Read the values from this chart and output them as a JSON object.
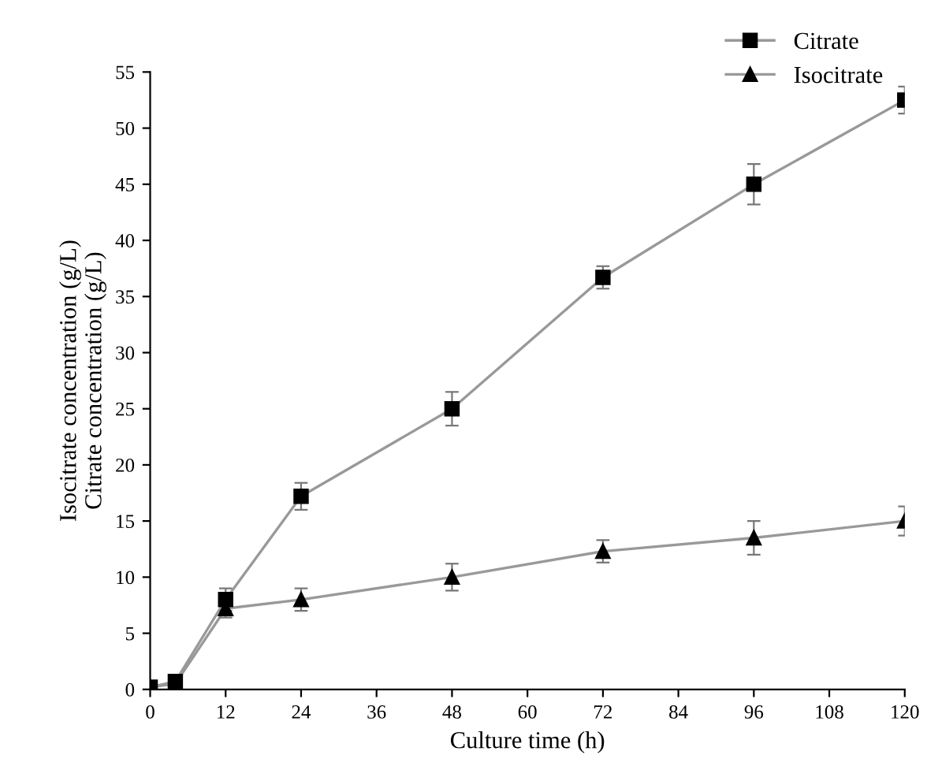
{
  "chart_data": {
    "type": "line",
    "xlabel": "Culture time (h)",
    "ylabel": "Isocitrate concentration (g/L)\nCitrate concentration (g/L)",
    "x": [
      0,
      4,
      12,
      24,
      48,
      72,
      96,
      120
    ],
    "series": [
      {
        "name": "Citrate",
        "color": "#000000",
        "marker": "square",
        "values": [
          0.2,
          0.7,
          8.0,
          17.2,
          25.0,
          36.7,
          45.0,
          52.5
        ],
        "errors": [
          0.3,
          0.4,
          1.0,
          1.2,
          1.5,
          1.0,
          1.8,
          1.2
        ]
      },
      {
        "name": "Isocitrate",
        "color": "#000000",
        "marker": "triangle",
        "values": [
          0.2,
          0.5,
          7.2,
          8.0,
          10.0,
          12.3,
          13.5,
          15.0
        ],
        "errors": [
          0.3,
          0.3,
          0.8,
          1.0,
          1.2,
          1.0,
          1.5,
          1.3
        ]
      }
    ],
    "xlim": [
      0,
      120
    ],
    "xticks": [
      0,
      12,
      24,
      36,
      48,
      60,
      72,
      84,
      96,
      108,
      120
    ],
    "ylim": [
      0,
      55
    ],
    "yticks": [
      0,
      5,
      10,
      15,
      20,
      25,
      30,
      35,
      40,
      45,
      50,
      55
    ],
    "grid": false,
    "legend": "top right",
    "line_style": "solid"
  }
}
